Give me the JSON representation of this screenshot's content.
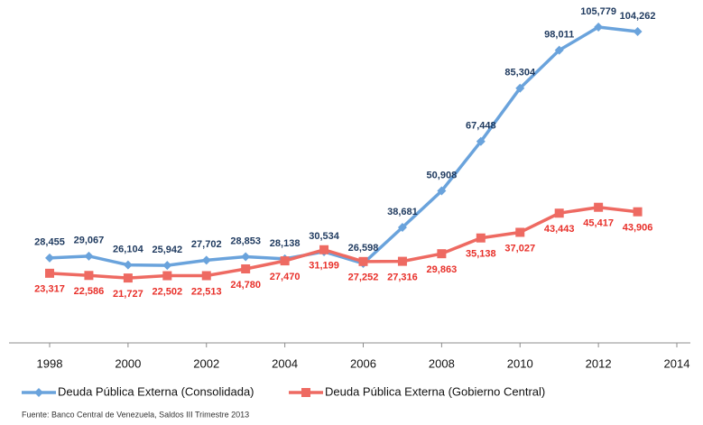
{
  "chart_data": {
    "type": "line",
    "x": [
      1998,
      1999,
      2000,
      2001,
      2002,
      2003,
      2004,
      2005,
      2006,
      2007,
      2008,
      2009,
      2010,
      2011,
      2012,
      2013
    ],
    "xlim": [
      1998,
      2014
    ],
    "xticks": [
      1998,
      2000,
      2002,
      2004,
      2006,
      2008,
      2010,
      2012,
      2014
    ],
    "ylim": [
      0,
      110000
    ],
    "series": [
      {
        "name": "Deuda Pública Externa (Consolidada)",
        "color": "#6aa3dc",
        "label_color": "#1f3a5f",
        "marker": "diamond",
        "values": [
          28455,
          29067,
          26104,
          25942,
          27702,
          28853,
          28138,
          30534,
          26598,
          38681,
          50908,
          67448,
          85304,
          98011,
          105779,
          104262
        ],
        "value_labels": [
          "28,455",
          "29,067",
          "26,104",
          "25,942",
          "27,702",
          "28,853",
          "28,138",
          "30,534",
          "26,598",
          "38,681",
          "50,908",
          "67,448",
          "85,304",
          "98,011",
          "105,779",
          "104,262"
        ]
      },
      {
        "name": "Deuda Pública Externa (Gobierno Central)",
        "color": "#ee6a62",
        "label_color": "#e8302a",
        "marker": "square",
        "values": [
          23317,
          22586,
          21727,
          22502,
          22513,
          24780,
          27470,
          31199,
          27252,
          27316,
          29863,
          35138,
          37027,
          43443,
          45417,
          43906
        ],
        "value_labels": [
          "23,317",
          "22,586",
          "21,727",
          "22,502",
          "22,513",
          "24,780",
          "27,470",
          "31,199",
          "27,252",
          "27,316",
          "29,863",
          "35,138",
          "37,027",
          "43,443",
          "45,417",
          "43,906"
        ]
      }
    ],
    "source": "Fuente: Banco Central de Venezuela, Saldos  III Trimestre 2013"
  }
}
